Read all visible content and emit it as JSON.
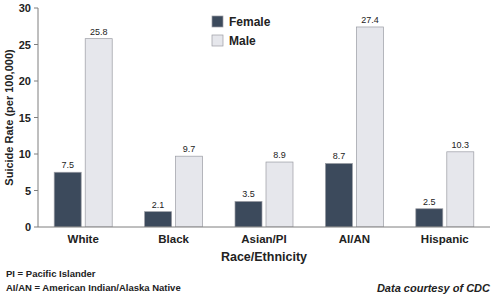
{
  "chart_data": {
    "type": "bar",
    "categories": [
      "White",
      "Black",
      "Asian/PI",
      "AI/AN",
      "Hispanic"
    ],
    "series": [
      {
        "name": "Female",
        "color": "#3c4a5c",
        "values": [
          7.5,
          2.1,
          3.5,
          8.7,
          2.5
        ]
      },
      {
        "name": "Male",
        "color": "#e6e7ec",
        "values": [
          25.8,
          9.7,
          8.9,
          27.4,
          10.3
        ]
      }
    ],
    "ylabel": "Suicide Rate (per 100,000)",
    "xlabel": "Race/Ethnicity",
    "ylim": [
      0,
      30
    ],
    "yticks": [
      0,
      5,
      10,
      15,
      20,
      25,
      30
    ],
    "grid": false,
    "legend": "top",
    "data_labels": true,
    "annotations": [
      "PI = Pacific Islander",
      "AI/AN = American Indian/Alaska Native",
      "Data courtesy of CDC"
    ]
  }
}
